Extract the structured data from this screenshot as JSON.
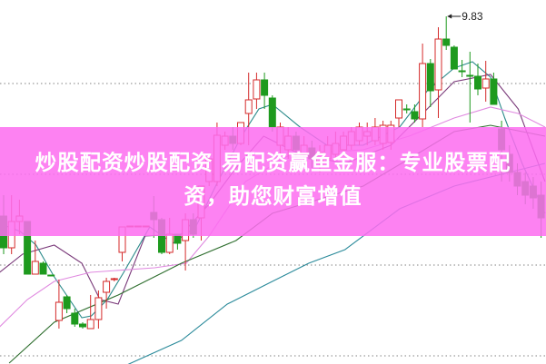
{
  "banner": {
    "line1": "炒股配资炒股配资 易配资赢鱼金服：专业股票配",
    "line2": "资，助您财富增值"
  },
  "chart_data": {
    "type": "candlestick",
    "title": "",
    "xlabel": "",
    "ylabel": "",
    "ylim": [
      5.99,
      10.01
    ],
    "grid": true,
    "grid_levels": [
      9.09,
      8.09,
      7.09,
      6.09
    ],
    "peak_annotation": {
      "label": "9.83",
      "candle_index": 56,
      "value": 9.83
    },
    "colors": {
      "up": "#d42a2a",
      "down": "#1e9a1e",
      "grid": "#9a9a9a",
      "banner": "#fd6ef0"
    },
    "candles_ohlc_order": [
      "open",
      "close",
      "high",
      "low"
    ],
    "candles": [
      [
        7.63,
        7.28,
        7.86,
        7.21
      ],
      [
        7.28,
        7.57,
        7.86,
        7.21
      ],
      [
        7.57,
        7.63,
        7.81,
        7.43
      ],
      [
        7.57,
        6.99,
        7.57,
        6.99
      ],
      [
        6.99,
        7.13,
        7.36,
        6.99
      ],
      [
        7.11,
        6.99,
        7.13,
        6.99
      ],
      [
        6.98,
        6.97,
        6.98,
        6.97
      ],
      [
        6.48,
        6.68,
        6.93,
        6.39
      ],
      [
        6.74,
        6.61,
        6.76,
        6.56
      ],
      [
        6.56,
        6.44,
        6.61,
        6.41
      ],
      [
        6.44,
        6.41,
        6.46,
        6.39
      ],
      [
        6.39,
        6.49,
        6.76,
        6.39
      ],
      [
        6.49,
        6.73,
        6.81,
        6.39
      ],
      [
        6.79,
        6.91,
        6.95,
        6.61
      ],
      [
        6.93,
        6.94,
        6.95,
        6.91
      ],
      [
        7.23,
        7.51,
        7.51,
        7.13
      ],
      [
        7.51,
        7.52,
        7.52,
        7.51
      ],
      [
        7.51,
        7.52,
        7.52,
        7.51
      ],
      [
        7.51,
        7.52,
        7.52,
        7.51
      ],
      [
        7.67,
        7.59,
        7.85,
        7.39
      ],
      [
        7.59,
        7.23,
        7.61,
        7.21
      ],
      [
        7.23,
        7.43,
        7.61,
        7.21
      ],
      [
        7.43,
        7.33,
        7.43,
        7.26
      ],
      [
        7.36,
        7.59,
        7.66,
        7.03
      ],
      [
        7.59,
        7.43,
        7.66,
        7.39
      ],
      [
        7.61,
        7.96,
        7.96,
        7.36
      ],
      [
        8.01,
        8.26,
        8.31,
        7.96
      ],
      [
        8.01,
        8.52,
        8.66,
        7.96
      ],
      [
        8.41,
        8.51,
        8.56,
        8.36
      ],
      [
        8.51,
        8.43,
        8.61,
        8.36
      ],
      [
        8.43,
        8.66,
        8.66,
        8.41
      ],
      [
        8.76,
        8.91,
        9.21,
        8.41
      ],
      [
        8.92,
        9.13,
        9.21,
        8.81
      ],
      [
        9.13,
        8.96,
        9.21,
        8.81
      ],
      [
        8.93,
        8.61,
        8.96,
        8.56
      ],
      [
        8.41,
        8.61,
        8.66,
        8.31
      ],
      [
        8.36,
        8.51,
        8.61,
        8.26
      ],
      [
        8.51,
        8.36,
        8.56,
        8.26
      ],
      [
        8.31,
        8.41,
        8.51,
        8.21
      ],
      [
        8.38,
        8.26,
        8.46,
        8.16
      ],
      [
        8.23,
        8.33,
        8.41,
        8.11
      ],
      [
        8.26,
        8.41,
        8.51,
        8.21
      ],
      [
        8.31,
        8.43,
        8.56,
        8.26
      ],
      [
        8.36,
        8.51,
        8.56,
        8.31
      ],
      [
        8.41,
        8.56,
        8.61,
        8.36
      ],
      [
        8.46,
        8.61,
        8.66,
        8.41
      ],
      [
        8.51,
        8.56,
        8.66,
        8.41
      ],
      [
        8.46,
        8.61,
        8.71,
        8.41
      ],
      [
        8.43,
        8.63,
        8.68,
        8.36
      ],
      [
        8.44,
        8.63,
        8.68,
        8.36
      ],
      [
        8.71,
        8.91,
        8.91,
        8.61
      ],
      [
        8.81,
        8.8,
        8.86,
        8.76
      ],
      [
        8.78,
        8.7,
        8.86,
        8.66
      ],
      [
        8.7,
        9.31,
        9.53,
        8.61
      ],
      [
        9.31,
        9.01,
        9.36,
        8.83
      ],
      [
        9.02,
        9.58,
        9.71,
        8.71
      ],
      [
        9.58,
        9.51,
        9.83,
        9.46
      ],
      [
        9.49,
        9.25,
        9.51,
        9.25
      ],
      [
        9.23,
        9.22,
        9.35,
        9.16
      ],
      [
        9.18,
        9.17,
        9.44,
        8.66
      ],
      [
        9.17,
        9.03,
        9.31,
        8.96
      ],
      [
        9.04,
        9.14,
        9.34,
        8.89
      ],
      [
        9.14,
        8.86,
        9.21,
        8.86
      ],
      [
        8.59,
        8.36,
        8.68,
        8.01
      ],
      [
        8.31,
        8.11,
        8.41,
        8.01
      ],
      [
        8.11,
        7.96,
        8.21,
        7.86
      ],
      [
        8.01,
        7.86,
        8.11,
        7.76
      ],
      [
        7.96,
        7.83,
        8.06,
        7.71
      ],
      [
        7.86,
        7.61,
        8.01,
        7.39
      ]
    ],
    "moving_averages": [
      {
        "color": "#2a8a8a",
        "points": [
          [
            0,
            7.53
          ],
          [
            2.1,
            7.46
          ],
          [
            4.1,
            7.31
          ],
          [
            6.4,
            6.96
          ],
          [
            9.9,
            6.51
          ],
          [
            11.1,
            6.53
          ],
          [
            13.1,
            6.71
          ],
          [
            15.2,
            7.01
          ],
          [
            18.5,
            7.51
          ],
          [
            21.4,
            7.33
          ],
          [
            24.3,
            7.51
          ],
          [
            27.1,
            8.01
          ],
          [
            30.1,
            8.51
          ],
          [
            32.3,
            8.81
          ],
          [
            34,
            8.86
          ],
          [
            37.5,
            8.61
          ],
          [
            40.9,
            8.41
          ],
          [
            45.5,
            8.41
          ],
          [
            50.1,
            8.61
          ],
          [
            53.6,
            9.01
          ],
          [
            57,
            9.26
          ],
          [
            59.3,
            9.33
          ],
          [
            61.6,
            9.16
          ],
          [
            63.4,
            8.71
          ],
          [
            65.6,
            8.21
          ],
          [
            68.5,
            7.66
          ]
        ]
      },
      {
        "color": "#7a3a7a",
        "points": [
          [
            -0.5,
            7.01
          ],
          [
            2.4,
            7.21
          ],
          [
            6.4,
            7.31
          ],
          [
            9.9,
            7.11
          ],
          [
            12.2,
            6.71
          ],
          [
            14.5,
            6.66
          ],
          [
            17.9,
            7.41
          ],
          [
            22.5,
            7.43
          ],
          [
            26,
            7.76
          ],
          [
            29.4,
            8.16
          ],
          [
            32.9,
            8.51
          ],
          [
            37.5,
            8.31
          ],
          [
            43.2,
            8.21
          ],
          [
            49,
            8.41
          ],
          [
            53.6,
            8.81
          ],
          [
            57,
            9.11
          ],
          [
            61.6,
            9.19
          ],
          [
            65.1,
            8.81
          ],
          [
            68.5,
            8.01
          ]
        ]
      },
      {
        "color": "#e08ae0",
        "points": [
          [
            -0.5,
            6.41
          ],
          [
            3,
            6.71
          ],
          [
            6.4,
            6.91
          ],
          [
            11,
            7.01
          ],
          [
            19.1,
            7.06
          ],
          [
            23.1,
            7.11
          ],
          [
            26,
            7.41
          ],
          [
            30.6,
            8.01
          ],
          [
            36.3,
            8.31
          ],
          [
            45.5,
            8.36
          ],
          [
            51.3,
            8.51
          ],
          [
            57,
            8.71
          ],
          [
            61.6,
            8.83
          ],
          [
            65.1,
            8.76
          ],
          [
            68.5,
            8.61
          ]
        ]
      },
      {
        "color": "#2e6e2e",
        "points": [
          [
            0.7,
            6.01
          ],
          [
            6.4,
            6.46
          ],
          [
            14.5,
            6.76
          ],
          [
            22.5,
            7.11
          ],
          [
            29.4,
            7.36
          ],
          [
            34,
            7.66
          ],
          [
            45.5,
            7.96
          ],
          [
            51.3,
            8.26
          ],
          [
            57,
            8.56
          ],
          [
            61.6,
            8.63
          ],
          [
            63.9,
            8.59
          ],
          [
            68.5,
            8.51
          ]
        ]
      },
      {
        "color": "#2a8a9a",
        "points": [
          [
            15.6,
            5.99
          ],
          [
            22.5,
            6.26
          ],
          [
            28.3,
            6.66
          ],
          [
            34,
            6.91
          ],
          [
            38.6,
            7.11
          ],
          [
            43.2,
            7.26
          ],
          [
            50.1,
            7.71
          ],
          [
            57,
            7.96
          ],
          [
            63.9,
            8.11
          ],
          [
            68.5,
            8.21
          ]
        ]
      }
    ]
  }
}
